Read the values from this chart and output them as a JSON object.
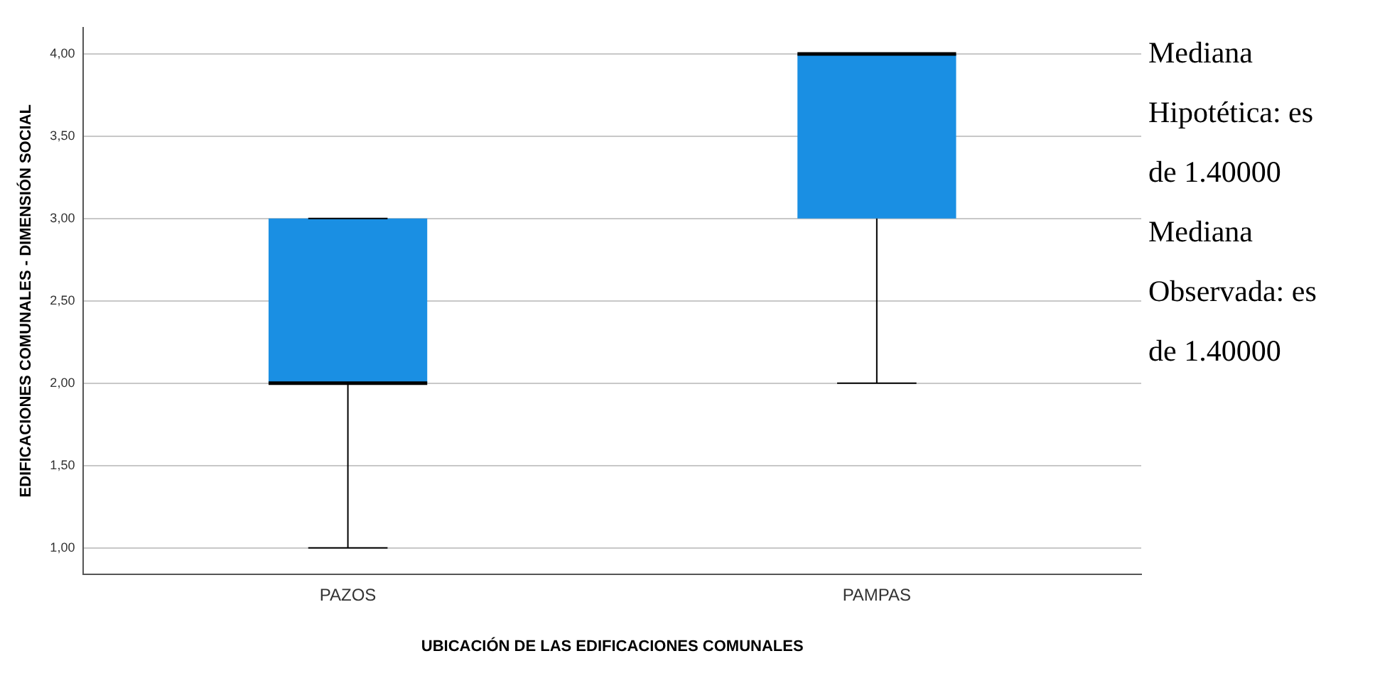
{
  "chart_data": {
    "type": "box",
    "xlabel": "UBICACIÓN DE LAS EDIFICACIONES COMUNALES",
    "ylabel": "EDIFICACIONES COMUNALES - DIMENSIÓN SOCIAL",
    "categories": [
      "PAZOS",
      "PAMPAS"
    ],
    "boxes": [
      {
        "low": 1,
        "q1": 2,
        "median": 2,
        "q3": 3,
        "high": 3
      },
      {
        "low": 2,
        "q1": 3,
        "median": 4,
        "q3": 4,
        "high": 4
      }
    ],
    "color": "#1a8fe3",
    "ylim": [
      0.84,
      4.16
    ],
    "yticks": [
      {
        "value": 1,
        "label": "1,00"
      },
      {
        "value": 1.5,
        "label": "1,50"
      },
      {
        "value": 2,
        "label": "2,00"
      },
      {
        "value": 2.5,
        "label": "2,50"
      },
      {
        "value": 3,
        "label": "3,00"
      },
      {
        "value": 3.5,
        "label": "3,50"
      },
      {
        "value": 4,
        "label": "4,00"
      }
    ],
    "grid": "y",
    "annotations": [
      "Mediana Hipotética: es de 1.40000",
      "Mediana Observada: es de 1.40000"
    ]
  }
}
